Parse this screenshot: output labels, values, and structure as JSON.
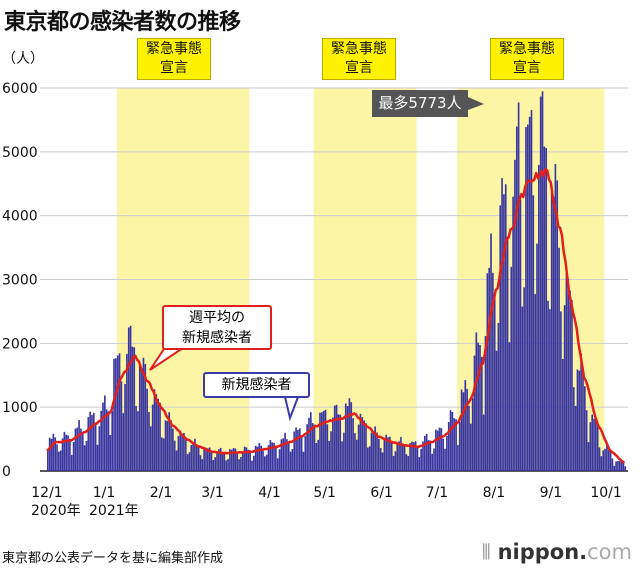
{
  "chart_data": {
    "type": "bar",
    "title": "東京都の感染者数の推移",
    "ylabel": "（人）",
    "ylim": [
      0,
      6000
    ],
    "yticks": [
      "0",
      "1000",
      "2000",
      "3000",
      "4000",
      "5000",
      "6000"
    ],
    "xticks": [
      {
        "label": "12/1",
        "day": 0
      },
      {
        "label": "1/1",
        "day": 31
      },
      {
        "label": "2/1",
        "day": 62
      },
      {
        "label": "3/1",
        "day": 90
      },
      {
        "label": "4/1",
        "day": 121
      },
      {
        "label": "5/1",
        "day": 151
      },
      {
        "label": "6/1",
        "day": 182
      },
      {
        "label": "7/1",
        "day": 212
      },
      {
        "label": "8/1",
        "day": 243
      },
      {
        "label": "9/1",
        "day": 274
      },
      {
        "label": "10/1",
        "day": 304
      }
    ],
    "year_labels": [
      {
        "label": "2020年",
        "day": 0
      },
      {
        "label": "2021年",
        "day": 31
      }
    ],
    "start_date": "2020-12-01",
    "emergency_periods": [
      {
        "label_line1": "緊急事態",
        "label_line2": "宣言",
        "start_day": 38,
        "end_day": 110
      },
      {
        "label_line1": "緊急事態",
        "label_line2": "宣言",
        "start_day": 145,
        "end_day": 201
      },
      {
        "label_line1": "緊急事態",
        "label_line2": "宣言",
        "start_day": 223,
        "end_day": 303
      }
    ],
    "series": [
      {
        "name": "新規感染者",
        "type": "bar",
        "color": "#3a37a0",
        "weekly_average": [
          450,
          480,
          600,
          750,
          900,
          1500,
          1800,
          1400,
          1000,
          700,
          500,
          380,
          300,
          280,
          290,
          300,
          340,
          380,
          450,
          550,
          700,
          780,
          820,
          900,
          700,
          530,
          450,
          400,
          380,
          450,
          550,
          750,
          1100,
          1700,
          2800,
          3700,
          4100,
          4600,
          4700,
          3800,
          2500,
          1400,
          700,
          300,
          130
        ],
        "weekday_pattern": [
          0.7,
          1.1,
          1.2,
          1.25,
          1.15,
          1.0,
          0.6
        ],
        "peak": {
          "day": 256,
          "value": 5773
        }
      },
      {
        "name": "週平均の新規感染者",
        "type": "line",
        "color": "#e0201c"
      }
    ],
    "annotations": {
      "peak": "最多5773人",
      "moving_average_line1": "週平均の",
      "moving_average_line2": "新規感染者",
      "daily": "新規感染者"
    }
  },
  "source": "東京都の公表データを基に編集部作成",
  "logo": {
    "main": "nippon.",
    "suffix": "com"
  }
}
